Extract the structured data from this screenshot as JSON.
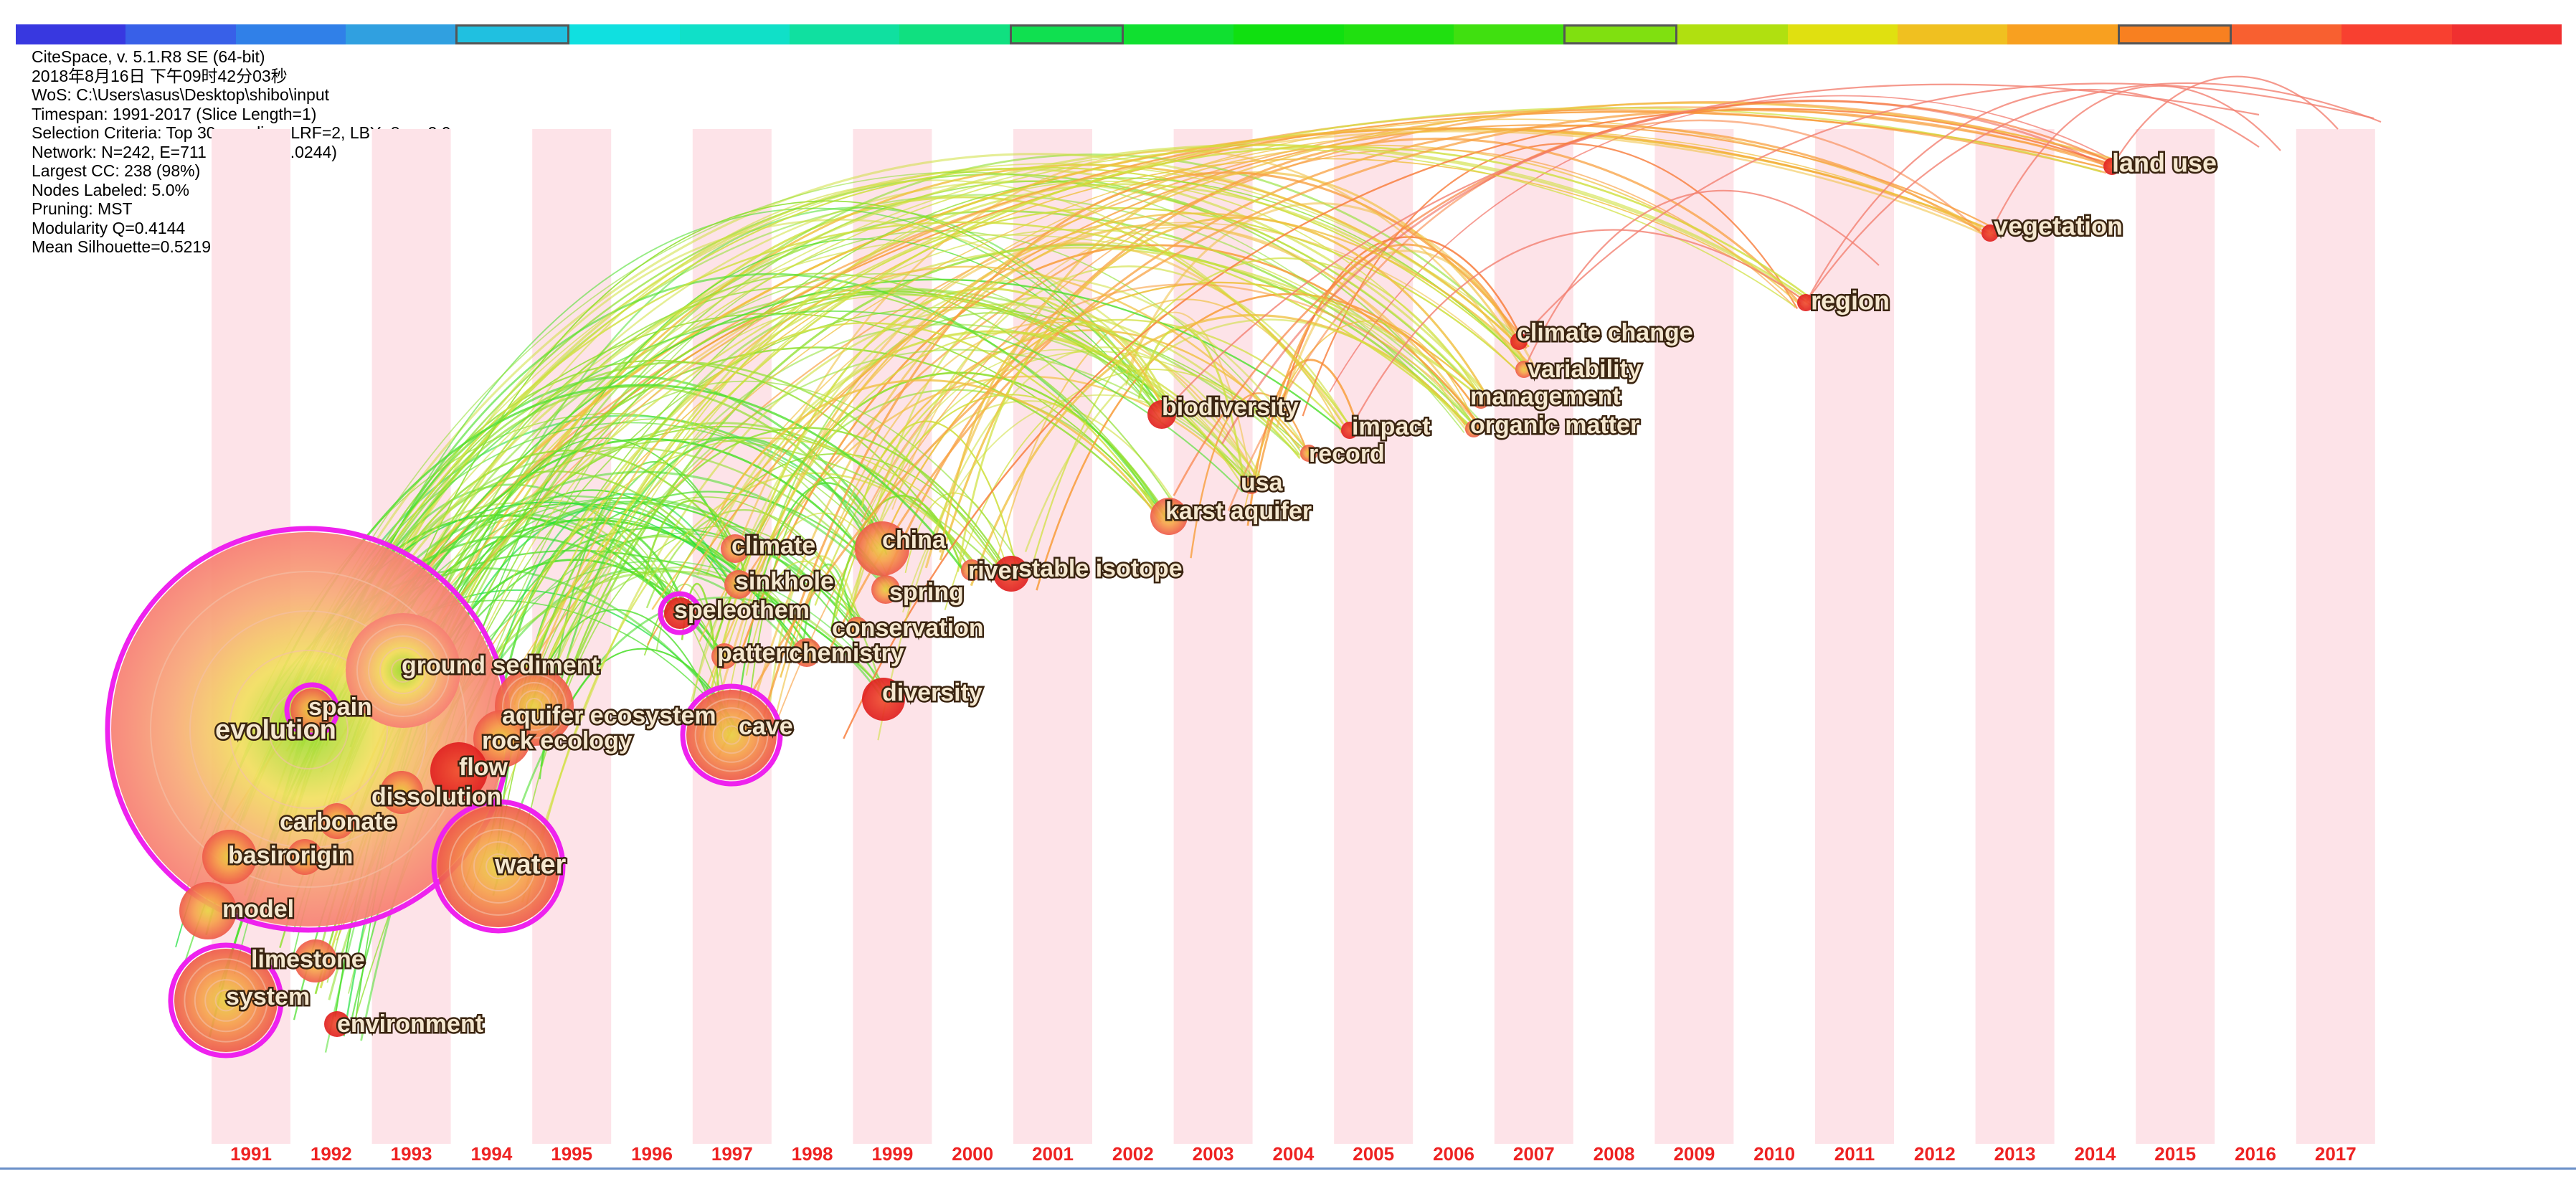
{
  "info_lines": [
    "CiteSpace, v. 5.1.R8 SE (64-bit)",
    "2018年8月16日 下午09时42分03秒",
    "WoS: C:\\Users\\asus\\Desktop\\shibo\\input",
    "Timespan: 1991-2017 (Slice Length=1)",
    "Selection Criteria: Top 30 per slice, LRF=2, LBY=8, e=2.0",
    "Network: N=242, E=711 (Density=0.0244)",
    "Largest CC: 238 (98%)",
    "Nodes Labeled: 5.0%",
    "Pruning: MST",
    "Modularity Q=0.4144",
    "Mean Silhouette=0.5219"
  ],
  "legend_colors": [
    "#3838e0",
    "#3860e8",
    "#3080e8",
    "#30a0e0",
    "#20c0e0",
    "#10e0e0",
    "#10e0c8",
    "#10e0a0",
    "#10e080",
    "#10e050",
    "#10e030",
    "#10e010",
    "#20e010",
    "#40e010",
    "#80e010",
    "#b0e010",
    "#e0e010",
    "#f0c020",
    "#f8a020",
    "#f88020",
    "#f86030",
    "#f84030",
    "#f03030"
  ],
  "legend_marked": [
    4,
    9,
    14,
    19,
    24
  ],
  "years": [
    "1991",
    "1992",
    "1993",
    "1994",
    "1995",
    "1996",
    "1997",
    "1998",
    "1999",
    "2000",
    "2001",
    "2002",
    "2003",
    "2004",
    "2005",
    "2006",
    "2007",
    "2008",
    "2009",
    "2010",
    "2011",
    "2012",
    "2013",
    "2014",
    "2015",
    "2016",
    "2017"
  ],
  "nodes": [
    {
      "label": "evolution",
      "year": 1991
    },
    {
      "label": "spain",
      "year": 1992
    },
    {
      "label": "ground sediment",
      "year": 1993
    },
    {
      "label": "aquifer ecosystem",
      "year": 1994
    },
    {
      "label": "rock ecology",
      "year": 1994
    },
    {
      "label": "flow",
      "year": 1994
    },
    {
      "label": "dissolution",
      "year": 1993
    },
    {
      "label": "carbonate",
      "year": 1992
    },
    {
      "label": "basin",
      "year": 1991
    },
    {
      "label": "origin",
      "year": 1992
    },
    {
      "label": "model",
      "year": 1991
    },
    {
      "label": "limestone",
      "year": 1992
    },
    {
      "label": "system",
      "year": 1991
    },
    {
      "label": "environment",
      "year": 1993
    },
    {
      "label": "water",
      "year": 1994
    },
    {
      "label": "cave",
      "year": 1997
    },
    {
      "label": "climate",
      "year": 1997
    },
    {
      "label": "sinkhole",
      "year": 1997
    },
    {
      "label": "speleothem",
      "year": 1996
    },
    {
      "label": "pattern",
      "year": 1997
    },
    {
      "label": "chemistry",
      "year": 1998
    },
    {
      "label": "conservation",
      "year": 1998
    },
    {
      "label": "spring",
      "year": 1999
    },
    {
      "label": "china",
      "year": 1999
    },
    {
      "label": "river",
      "year": 2000
    },
    {
      "label": "stable isotope",
      "year": 2001
    },
    {
      "label": "diversity",
      "year": 1999
    },
    {
      "label": "biodiversity",
      "year": 2003
    },
    {
      "label": "usa",
      "year": 2004
    },
    {
      "label": "karst aquifer",
      "year": 2003
    },
    {
      "label": "record",
      "year": 2005
    },
    {
      "label": "impact",
      "year": 2005
    },
    {
      "label": "organic matter",
      "year": 2006
    },
    {
      "label": "management",
      "year": 2007
    },
    {
      "label": "variability",
      "year": 2007
    },
    {
      "label": "climate change",
      "year": 2007
    },
    {
      "label": "region",
      "year": 2011
    },
    {
      "label": "vegetation",
      "year": 2013
    },
    {
      "label": "land use",
      "year": 2014
    }
  ]
}
